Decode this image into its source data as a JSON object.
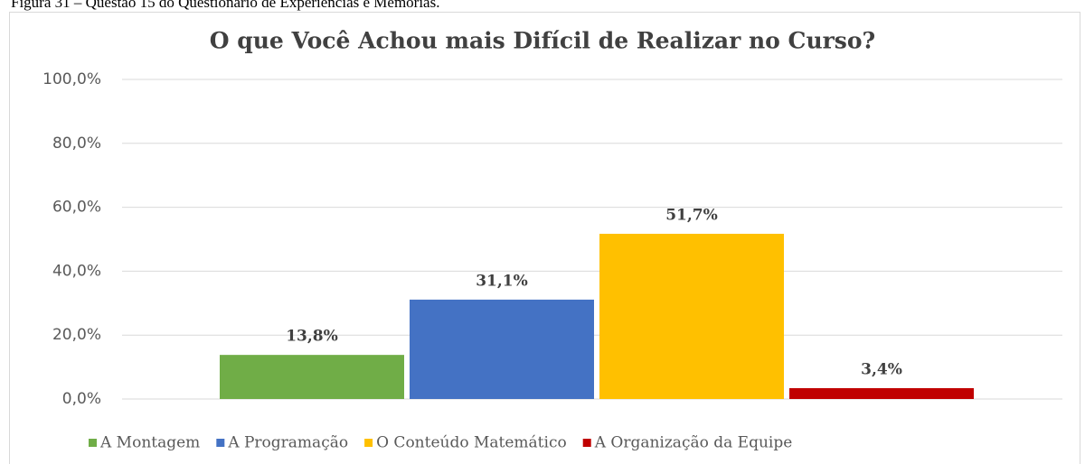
{
  "caption": "Figura 31 – Questão 15 do Questionário de Experiências e Memórias.",
  "chart_data": {
    "type": "bar",
    "title": "O que Você Achou mais Difícil de Realizar no Curso?",
    "categories": [
      null
    ],
    "series": [
      {
        "name": "A Montagem",
        "color": "#70ad47",
        "values": [
          13.8
        ],
        "value_labels": [
          "13,8%"
        ]
      },
      {
        "name": "A Programação",
        "color": "#4472c4",
        "values": [
          31.1
        ],
        "value_labels": [
          "31,1%"
        ]
      },
      {
        "name": "O Conteúdo Matemático",
        "color": "#ffc000",
        "values": [
          51.7
        ],
        "value_labels": [
          "51,7%"
        ]
      },
      {
        "name": "A Organização da Equipe",
        "color": "#c00000",
        "values": [
          3.4
        ],
        "value_labels": [
          "3,4%"
        ]
      }
    ],
    "ylim": [
      0,
      100
    ],
    "yticks": [
      {
        "value": 0,
        "label": "0,0%"
      },
      {
        "value": 20,
        "label": "20,0%"
      },
      {
        "value": 40,
        "label": "40,0%"
      },
      {
        "value": 60,
        "label": "60,0%"
      },
      {
        "value": 80,
        "label": "80,0%"
      },
      {
        "value": 100,
        "label": "100,0%"
      }
    ],
    "grid": true,
    "legend": "bottom"
  }
}
